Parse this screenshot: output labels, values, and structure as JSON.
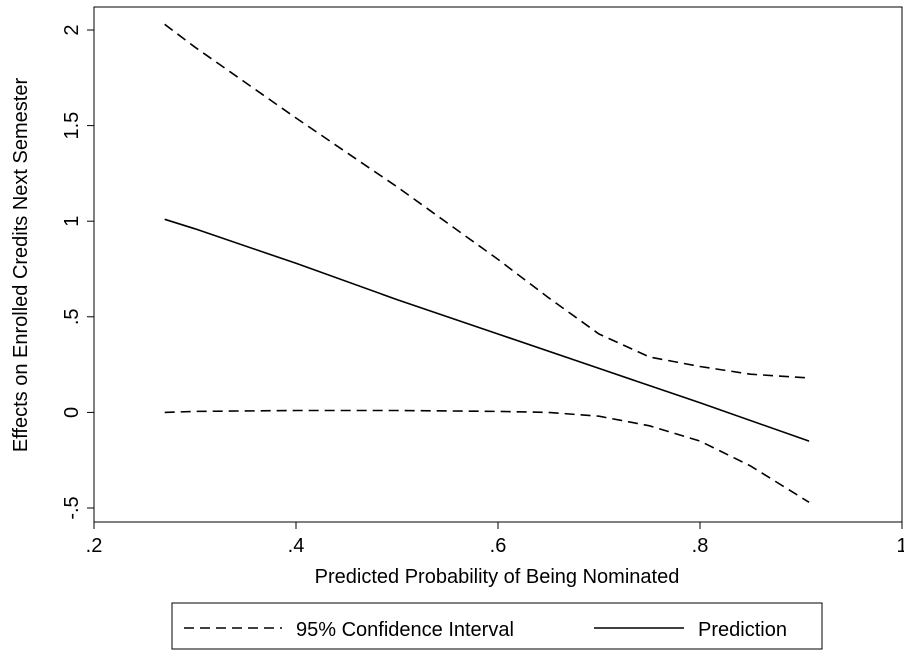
{
  "chart_data": {
    "type": "line",
    "title": "",
    "xlabel": "Predicted Probability of Being Nominated",
    "ylabel": "Effects on Enrolled Credits Next Semester",
    "xlim": [
      0.2,
      1.0
    ],
    "ylim": [
      -0.5,
      2.0
    ],
    "x_ticks": [
      0.2,
      0.4,
      0.6,
      0.8,
      1.0
    ],
    "x_tick_labels": [
      ".2",
      ".4",
      ".6",
      ".8",
      "1"
    ],
    "y_ticks": [
      -0.5,
      0,
      0.5,
      1.0,
      1.5,
      2.0
    ],
    "y_tick_labels": [
      "-.5",
      "0",
      ".5",
      "1",
      "1.5",
      "2"
    ],
    "grid": false,
    "legend_position": "bottom",
    "series": [
      {
        "name": "Prediction",
        "style": "solid",
        "color": "#000000",
        "x": [
          0.27,
          0.3,
          0.4,
          0.5,
          0.6,
          0.7,
          0.8,
          0.908
        ],
        "y": [
          1.01,
          0.96,
          0.78,
          0.59,
          0.41,
          0.23,
          0.05,
          -0.15
        ]
      },
      {
        "name": "95% Confidence Interval",
        "style": "dashed",
        "color": "#000000",
        "x": [
          0.27,
          0.3,
          0.4,
          0.5,
          0.6,
          0.65,
          0.7,
          0.75,
          0.8,
          0.85,
          0.908
        ],
        "y": [
          2.03,
          1.91,
          1.54,
          1.18,
          0.8,
          0.6,
          0.41,
          0.29,
          0.24,
          0.2,
          0.18
        ]
      },
      {
        "name": "95% Confidence Interval (lower)",
        "style": "dashed",
        "color": "#000000",
        "x": [
          0.27,
          0.3,
          0.4,
          0.5,
          0.6,
          0.65,
          0.7,
          0.75,
          0.8,
          0.85,
          0.908
        ],
        "y": [
          0.0,
          0.005,
          0.01,
          0.01,
          0.005,
          0.0,
          -0.02,
          -0.07,
          -0.15,
          -0.28,
          -0.47
        ]
      }
    ],
    "legend": [
      {
        "label": "95% Confidence Interval",
        "style": "dashed"
      },
      {
        "label": "Prediction",
        "style": "solid"
      }
    ]
  }
}
